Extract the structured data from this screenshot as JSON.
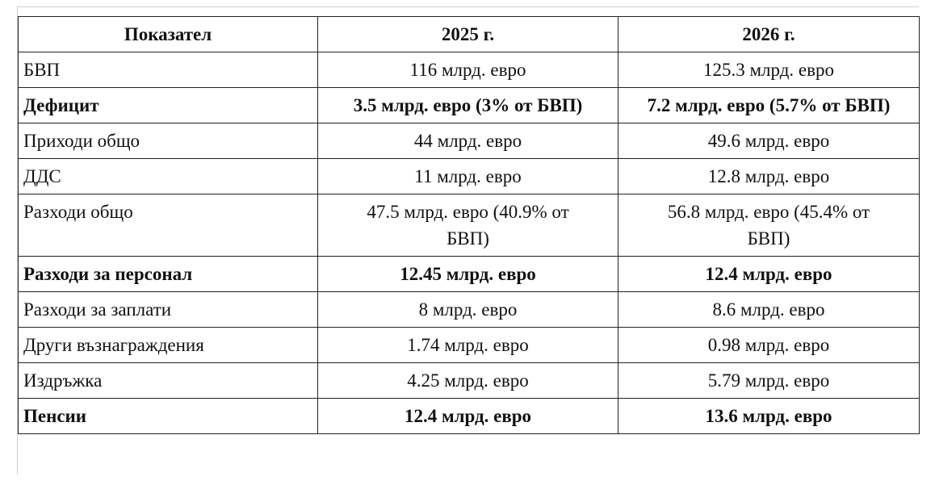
{
  "table": {
    "header": [
      "Показател",
      "2025 г.",
      "2026 г."
    ],
    "rows": [
      {
        "cells": [
          "БВП",
          "116 млрд. евро",
          "125.3 млрд. евро"
        ],
        "bold": false
      },
      {
        "cells": [
          "Дефицит",
          "3.5 млрд. евро (3% от БВП)",
          "7.2 млрд. евро (5.7% от БВП)"
        ],
        "bold": true
      },
      {
        "cells": [
          "Приходи общо",
          "44 млрд. евро",
          "49.6 млрд. евро"
        ],
        "bold": false
      },
      {
        "cells": [
          "ДДС",
          "11 млрд. евро",
          "12.8 млрд. евро"
        ],
        "bold": false
      },
      {
        "cells": [
          "Разходи общо",
          "47.5 млрд. евро (40.9% от БВП)",
          "56.8 млрд. евро (45.4% от БВП)"
        ],
        "bold": false
      },
      {
        "cells": [
          "Разходи за персонал",
          "12.45 млрд. евро",
          "12.4 млрд. евро"
        ],
        "bold": true
      },
      {
        "cells": [
          "Разходи за заплати",
          "8 млрд. евро",
          "8.6 млрд. евро"
        ],
        "bold": false
      },
      {
        "cells": [
          "Други възнаграждения",
          "1.74 млрд. евро",
          "0.98 млрд. евро"
        ],
        "bold": false
      },
      {
        "cells": [
          "Издръжка",
          "4.25 млрд. евро",
          "5.79 млрд. евро"
        ],
        "bold": false
      },
      {
        "cells": [
          "Пенсии",
          "12.4 млрд. евро",
          "13.6 млрд. евро"
        ],
        "bold": true
      }
    ]
  }
}
